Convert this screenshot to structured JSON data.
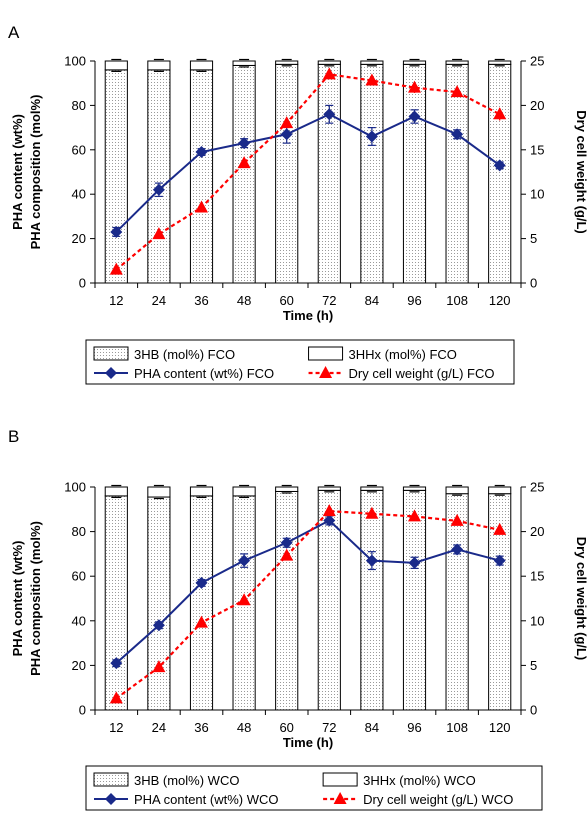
{
  "chart_data": [
    {
      "type": "bar",
      "panel_label": "A",
      "xlabel": "Time (h)",
      "ylabel_left": [
        "PHA content (wt%)",
        "PHA composition (mol%)"
      ],
      "ylabel_right": "Dry cell weight (g/L)",
      "categories": [
        "12",
        "24",
        "36",
        "48",
        "60",
        "72",
        "84",
        "96",
        "108",
        "120"
      ],
      "ylim_left": [
        0,
        100
      ],
      "ylim_right": [
        0,
        25
      ],
      "yticks_left": [
        "0",
        "20",
        "40",
        "60",
        "80",
        "100"
      ],
      "yticks_right": [
        "0",
        "5",
        "10",
        "15",
        "20",
        "25"
      ],
      "series": [
        {
          "name": "3HB (mol%) FCO",
          "kind": "stacked-bar-bottom",
          "axis": "left",
          "values": [
            96,
            96,
            96,
            98,
            98.5,
            98.5,
            98.5,
            98.5,
            98.5,
            98.5
          ]
        },
        {
          "name": "3HHx (mol%) FCO",
          "kind": "stacked-bar-top",
          "axis": "left",
          "values": [
            4,
            4,
            4,
            2,
            1.5,
            1.5,
            1.5,
            1.5,
            1.5,
            1.5
          ]
        },
        {
          "name": "PHA content (wt%) FCO",
          "kind": "line",
          "axis": "left",
          "color": "#1a2a8a",
          "values": [
            23,
            42,
            59,
            63,
            67,
            76,
            66,
            75,
            67,
            53
          ],
          "errors": [
            2,
            3,
            1.5,
            2,
            4,
            4,
            4,
            3,
            2,
            1.5
          ]
        },
        {
          "name": "Dry cell weight (g/L) FCO",
          "kind": "dashed-line",
          "axis": "right",
          "color": "#ff0000",
          "values": [
            1.5,
            5.5,
            8.5,
            13.5,
            18,
            23.5,
            22.8,
            22,
            21.5,
            19
          ],
          "errors": [
            0.3,
            0.3,
            0.3,
            0.4,
            0.4,
            0.5,
            0.4,
            0.6,
            0.5,
            0.7
          ]
        }
      ],
      "legend": {
        "rows": [
          [
            "3HB (mol%) FCO",
            "3HHx (mol%) FCO"
          ],
          [
            "PHA content (wt%) FCO",
            "Dry cell weight (g/L) FCO"
          ]
        ]
      }
    },
    {
      "type": "bar",
      "panel_label": "B",
      "xlabel": "Time (h)",
      "ylabel_left": [
        "PHA content (wt%)",
        "PHA composition (mol%)"
      ],
      "ylabel_right": "Dry cell weight (g/L)",
      "categories": [
        "12",
        "24",
        "36",
        "48",
        "60",
        "72",
        "84",
        "96",
        "108",
        "120"
      ],
      "ylim_left": [
        0,
        100
      ],
      "ylim_right": [
        0,
        25
      ],
      "yticks_left": [
        "0",
        "20",
        "40",
        "60",
        "80",
        "100"
      ],
      "yticks_right": [
        "0",
        "5",
        "10",
        "15",
        "20",
        "25"
      ],
      "series": [
        {
          "name": "3HB (mol%) WCO",
          "kind": "stacked-bar-bottom",
          "axis": "left",
          "values": [
            96,
            95.5,
            96,
            96,
            98,
            98.5,
            98.5,
            98.5,
            97,
            97
          ]
        },
        {
          "name": "3HHx (mol%) WCO",
          "kind": "stacked-bar-top",
          "axis": "left",
          "values": [
            4,
            4.5,
            4,
            4,
            2,
            1.5,
            1.5,
            1.5,
            3,
            3
          ]
        },
        {
          "name": "PHA content (wt%) WCO",
          "kind": "line",
          "axis": "left",
          "color": "#1a2a8a",
          "values": [
            21,
            38,
            57,
            67,
            75,
            85,
            67,
            66,
            72,
            67
          ],
          "errors": [
            1.5,
            1.5,
            1.5,
            3,
            2,
            2,
            4,
            2.5,
            2,
            2
          ]
        },
        {
          "name": "Dry cell weight (g/L) WCO",
          "kind": "dashed-line",
          "axis": "right",
          "color": "#ff0000",
          "values": [
            1.3,
            4.8,
            9.8,
            12.3,
            17.3,
            22.3,
            22,
            21.7,
            21.2,
            20.2
          ],
          "errors": [
            0.3,
            0.3,
            0.4,
            0.4,
            0.5,
            0.5,
            0.4,
            0.4,
            0.4,
            0.4
          ]
        }
      ],
      "legend": {
        "rows": [
          [
            "3HB (mol%) WCO",
            "3HHx (mol%) WCO"
          ],
          [
            "PHA content (wt%) WCO",
            "Dry cell weight (g/L) WCO"
          ]
        ]
      }
    }
  ]
}
